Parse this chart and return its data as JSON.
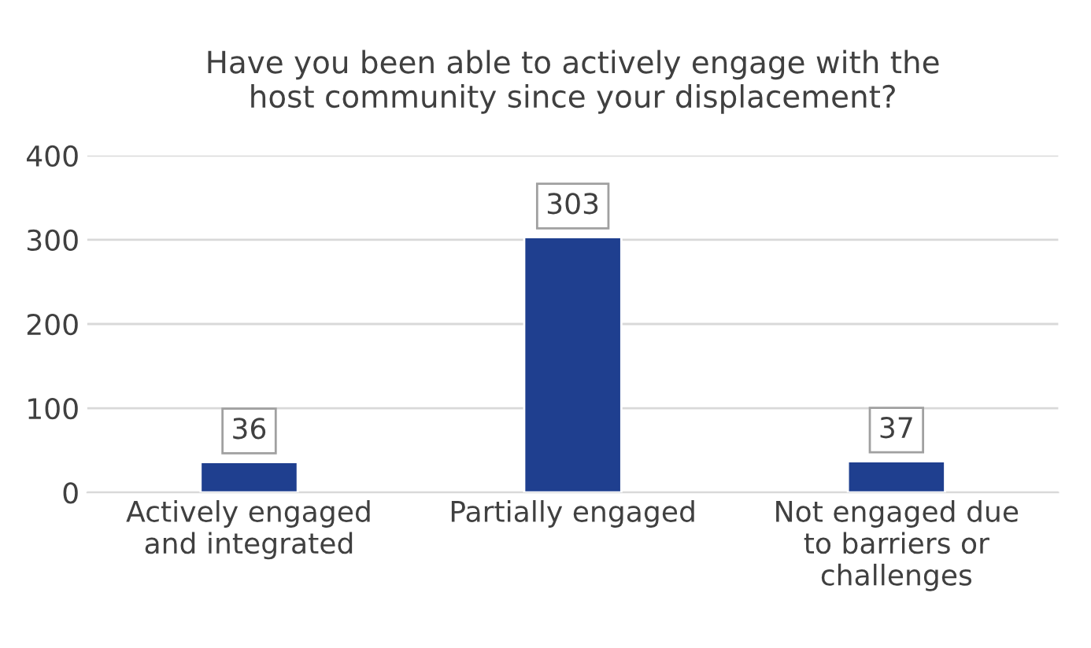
{
  "chart_data": {
    "type": "bar",
    "title": "Have you been able to actively engage with the\nhost community since your displacement?",
    "categories": [
      "Actively engaged\nand integrated",
      "Partially engaged",
      "Not engaged due\nto barriers or\nchallenges"
    ],
    "values": [
      36,
      303,
      37
    ],
    "color": "#1f3f8f",
    "ylim": [
      0,
      400
    ],
    "yticks": [
      0,
      100,
      200,
      300,
      400
    ],
    "grid": "y",
    "data_labels": true
  }
}
